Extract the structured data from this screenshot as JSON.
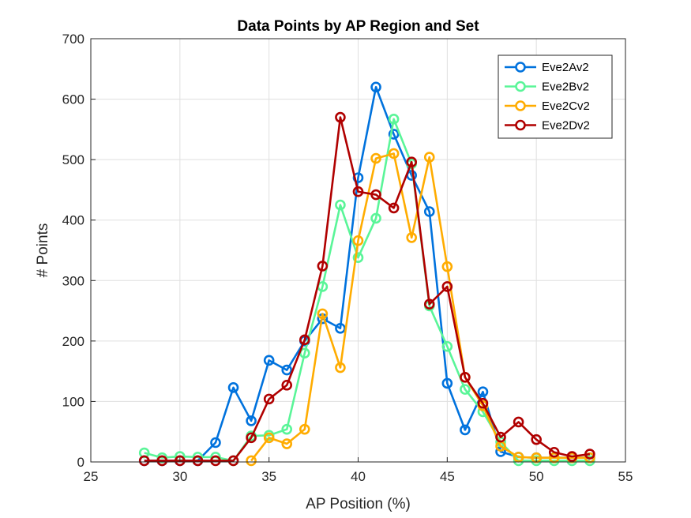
{
  "chart_data": {
    "type": "line",
    "title": "Data Points by AP Region and Set",
    "xlabel": "AP Position (%)",
    "ylabel": "# Points",
    "xlim": [
      25,
      55
    ],
    "ylim": [
      0,
      700
    ],
    "xticks": [
      25,
      30,
      35,
      40,
      45,
      50,
      55
    ],
    "yticks": [
      0,
      100,
      200,
      300,
      400,
      500,
      600,
      700
    ],
    "grid": true,
    "legend_position": "top-right",
    "marker": "circle",
    "series": [
      {
        "name": "Eve2Av2",
        "color": "#0072DD",
        "x": [
          28,
          29,
          30,
          31,
          32,
          33,
          34,
          35,
          36,
          37,
          38,
          39,
          40,
          41,
          42,
          43,
          44,
          45,
          46,
          47,
          48,
          49,
          50,
          51,
          52,
          53
        ],
        "y": [
          2,
          2,
          2,
          2,
          32,
          123,
          68,
          168,
          152,
          200,
          237,
          221,
          470,
          620,
          542,
          474,
          414,
          130,
          53,
          116,
          17,
          8,
          7,
          7,
          7,
          7
        ]
      },
      {
        "name": "Eve2Bv2",
        "color": "#5AF598",
        "x": [
          28,
          29,
          30,
          31,
          32,
          33,
          34,
          35,
          36,
          37,
          38,
          39,
          40,
          41,
          42,
          43,
          44,
          45,
          46,
          47,
          48,
          49,
          50,
          51,
          52,
          53
        ],
        "y": [
          15,
          7,
          9,
          8,
          8,
          2,
          43,
          44,
          54,
          180,
          290,
          425,
          338,
          403,
          567,
          493,
          258,
          191,
          120,
          83,
          33,
          2,
          2,
          2,
          2,
          2
        ]
      },
      {
        "name": "Eve2Cv2",
        "color": "#FFAC00",
        "x": [
          34,
          35,
          36,
          37,
          38,
          39,
          40,
          41,
          42,
          43,
          44,
          45,
          46,
          47,
          48,
          49,
          50,
          51,
          52,
          53
        ],
        "y": [
          2,
          40,
          30,
          54,
          245,
          156,
          366,
          502,
          510,
          371,
          504,
          323,
          140,
          93,
          26,
          8,
          7,
          7,
          7,
          7
        ]
      },
      {
        "name": "Eve2Dv2",
        "color": "#B00000",
        "x": [
          28,
          29,
          30,
          31,
          32,
          33,
          34,
          35,
          36,
          37,
          38,
          39,
          40,
          41,
          42,
          43,
          44,
          45,
          46,
          47,
          48,
          49,
          50,
          51,
          52,
          53
        ],
        "y": [
          2,
          2,
          2,
          2,
          2,
          2,
          40,
          104,
          127,
          202,
          324,
          570,
          447,
          442,
          420,
          496,
          261,
          290,
          140,
          97,
          41,
          66,
          37,
          16,
          9,
          13
        ]
      }
    ]
  }
}
